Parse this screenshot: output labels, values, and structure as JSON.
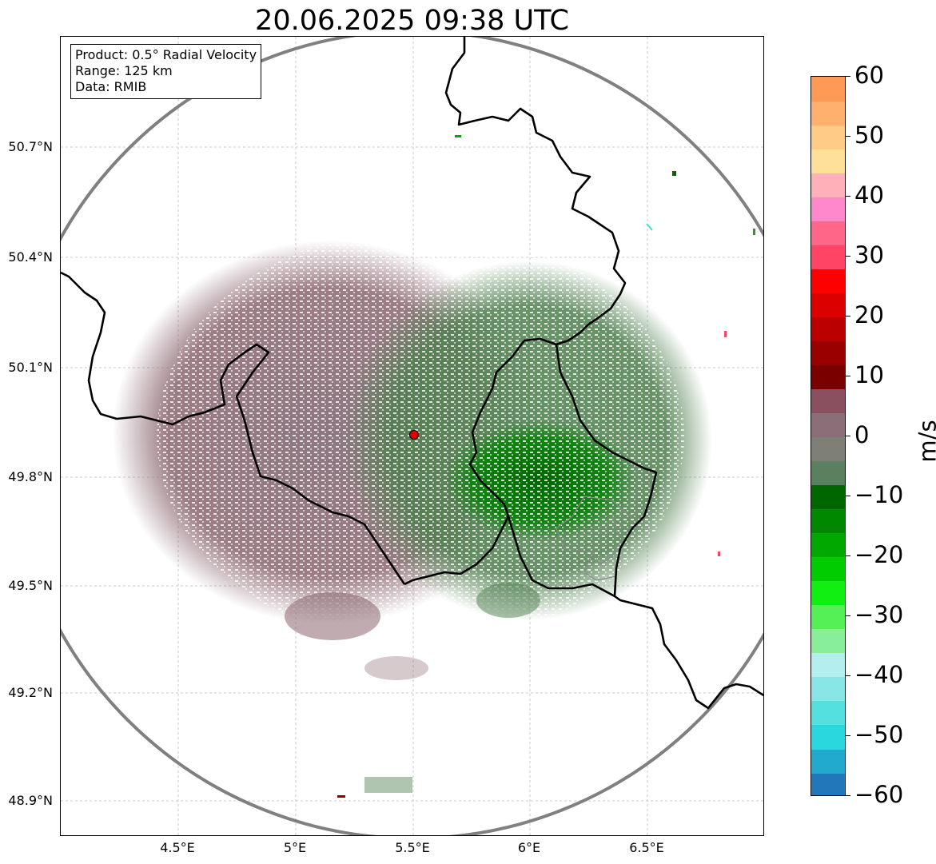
{
  "title": "20.06.2025 09:38 UTC",
  "info": {
    "product": "Product: 0.5° Radial Velocity",
    "range": "Range: 125 km",
    "source": "Data: RMIB"
  },
  "axes": {
    "lat_ticks": [
      "50.7°N",
      "50.4°N",
      "50.1°N",
      "49.8°N",
      "49.5°N",
      "49.2°N",
      "48.9°N"
    ],
    "lon_ticks": [
      "4.5°E",
      "5°E",
      "5.5°E",
      "6°E",
      "6.5°E"
    ]
  },
  "colorbar": {
    "unit": "m/s",
    "ticks": [
      "60",
      "50",
      "40",
      "30",
      "20",
      "10",
      "0",
      "−10",
      "−20",
      "−30",
      "−40",
      "−50",
      "−60"
    ],
    "range": [
      -60,
      60
    ],
    "colors": [
      "#2277bb",
      "#22aacc",
      "#2ad7de",
      "#55e0e0",
      "#88e6e6",
      "#b5eeee",
      "#88ee99",
      "#55f055",
      "#11ee11",
      "#00cc00",
      "#00a800",
      "#008800",
      "#006600",
      "#5a8060",
      "#7e8078",
      "#8a6e78",
      "#8a5060",
      "#7a0000",
      "#990000",
      "#bb0000",
      "#dd0000",
      "#ff0000",
      "#ff4466",
      "#ff6688",
      "#ff88cc",
      "#ffb0b8",
      "#ffe099",
      "#ffcc88",
      "#ffb06e",
      "#ff9955"
    ],
    "color_names": [
      "blue",
      "light-blue",
      "cyan",
      "turquoise",
      "pale-cyan",
      "pale-ice",
      "light-green",
      "green",
      "bright-green",
      "medium-green",
      "green",
      "dark-green",
      "deep-green",
      "gray-green",
      "gray",
      "mauve",
      "dark-mauve",
      "maroon",
      "dark-red",
      "red",
      "red",
      "bright-red",
      "pink-red",
      "pink",
      "light-pink",
      "pale-pink",
      "pale-yellow",
      "light-orange",
      "orange",
      "orange"
    ]
  },
  "map": {
    "radar_site": "radar-site-marker",
    "colors": {
      "approaching": "#4f7f4f",
      "receding": "#8a6670",
      "strong_approaching": "#006600",
      "border": "#000000",
      "range_ring": "#808080",
      "grid": "#bbbbbb",
      "site": "#dd0000"
    }
  }
}
